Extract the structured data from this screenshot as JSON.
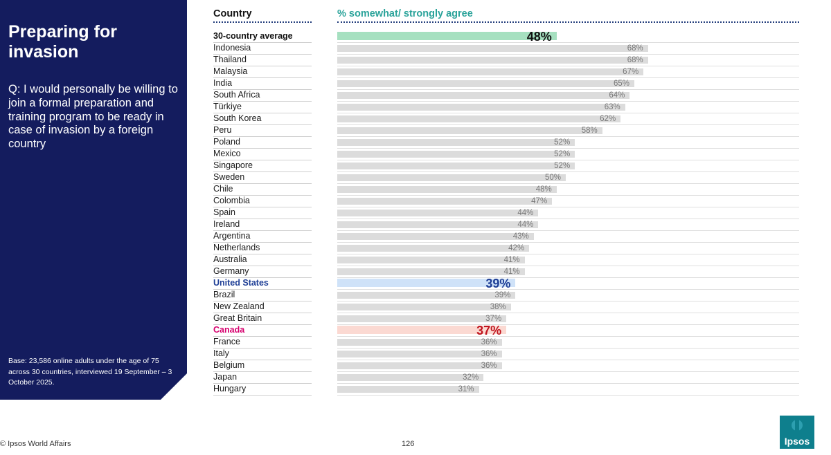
{
  "panel": {
    "title": "Preparing for invasion",
    "question": "Q: I would personally be willing to join a formal preparation and training program to be ready in case of invasion by a foreign country",
    "base_note": "Base: 23,586 online adults under the age of 75 across 30 countries, interviewed 19 September – 3 October 2025."
  },
  "footer": {
    "copyright": "© Ipsos World Affairs",
    "page_number": "126"
  },
  "logo_text": "Ipsos",
  "colors": {
    "panel_bg": "#141c5e",
    "average_bar": "#a6e0c0",
    "us_bar": "#cfe2f8",
    "us_text": "#1f3f96",
    "canada_bar": "#fbd9d2",
    "canada_label": "#d6006e",
    "canada_value": "#c0151f",
    "default_bar": "#dcdcdc",
    "header_metric": "#2aa39a",
    "logo": "#0e7f8d"
  },
  "chart_data": {
    "type": "bar",
    "orientation": "horizontal",
    "xlabel": "% somewhat/ strongly agree",
    "ylabel": "Country",
    "xlim": [
      0,
      100
    ],
    "categories": [
      "30-country average",
      "Indonesia",
      "Thailand",
      "Malaysia",
      "India",
      "South Africa",
      "Türkiye",
      "South Korea",
      "Peru",
      "Poland",
      "Mexico",
      "Singapore",
      "Sweden",
      "Chile",
      "Colombia",
      "Spain",
      "Ireland",
      "Argentina",
      "Netherlands",
      "Australia",
      "Germany",
      "United States",
      "Brazil",
      "New Zealand",
      "Great Britain",
      "Canada",
      "France",
      "Italy",
      "Belgium",
      "Japan",
      "Hungary"
    ],
    "values": [
      48,
      68,
      68,
      67,
      65,
      64,
      63,
      62,
      58,
      52,
      52,
      52,
      50,
      48,
      47,
      44,
      44,
      43,
      42,
      41,
      41,
      39,
      39,
      38,
      37,
      37,
      36,
      36,
      36,
      32,
      31
    ],
    "value_labels": [
      "48%",
      "68%",
      "68%",
      "67%",
      "65%",
      "64%",
      "63%",
      "62%",
      "58%",
      "52%",
      "52%",
      "52%",
      "50%",
      "48%",
      "47%",
      "44%",
      "44%",
      "43%",
      "42%",
      "41%",
      "41%",
      "39%",
      "39%",
      "38%",
      "37%",
      "37%",
      "36%",
      "36%",
      "36%",
      "32%",
      "31%"
    ],
    "highlighted": {
      "30-country average": "average",
      "United States": "us",
      "Canada": "canada"
    },
    "grid": false,
    "legend": "none"
  }
}
